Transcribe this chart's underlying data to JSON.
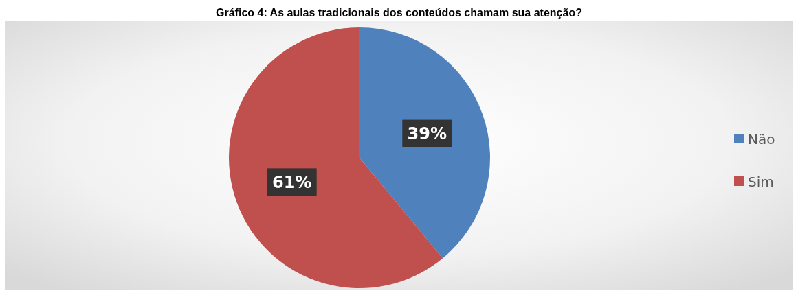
{
  "chart_data": {
    "type": "pie",
    "title": "Gráfico 4: As aulas tradicionais dos conteúdos chamam sua atenção?",
    "categories": [
      "Não",
      "Sim"
    ],
    "values": [
      39,
      61
    ],
    "colors": [
      "#4f81bd",
      "#c0504d"
    ],
    "value_labels": [
      "39%",
      "61%"
    ],
    "legend": "right"
  }
}
